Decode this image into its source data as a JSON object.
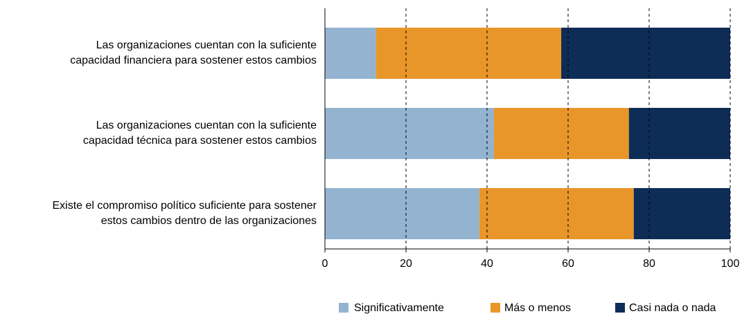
{
  "chart_data": {
    "type": "stacked-bar-horizontal",
    "categories": [
      [
        "Las organizaciones cuentan con la suficiente",
        "capacidad financiera para sostener estos cambios"
      ],
      [
        "Las organizaciones cuentan con la suficiente",
        "capacidad técnica para sostener estos cambios"
      ],
      [
        "Existe el compromiso político suficiente para sostener",
        "estos cambios dentro de las organizaciones"
      ]
    ],
    "series": [
      {
        "name": "Significativamente",
        "color": "#93b3d1",
        "values": [
          12.6,
          41.7,
          38.1
        ]
      },
      {
        "name": "Más o menos",
        "color": "#e8962a",
        "values": [
          45.7,
          33.3,
          38.1
        ]
      },
      {
        "name": "Casi nada o nada",
        "color": "#0e2d56",
        "values": [
          41.7,
          25.0,
          23.8
        ]
      }
    ],
    "xlim": [
      0,
      100
    ],
    "xticks": [
      0,
      20,
      40,
      60,
      80,
      100
    ],
    "grid": true,
    "legend": "bottom"
  }
}
